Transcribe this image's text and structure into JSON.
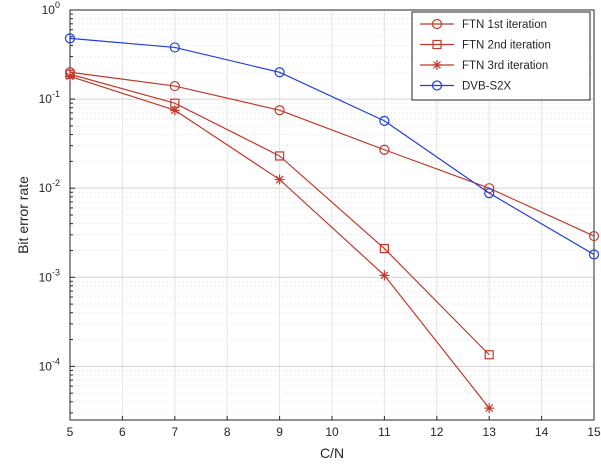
{
  "chart_data": {
    "type": "line",
    "xlabel": "C/N",
    "ylabel": "Bit error rate",
    "xlim": [
      5,
      15
    ],
    "ylim": [
      2.5e-05,
      1
    ],
    "yscale": "log",
    "grid": true,
    "legend_position": "top-right",
    "x_ticks": [
      5,
      6,
      7,
      8,
      9,
      10,
      11,
      12,
      13,
      14,
      15
    ],
    "series": [
      {
        "name": "FTN 1st iteration",
        "color": "#c0392b",
        "marker": "circle",
        "x": [
          5,
          7,
          9,
          11,
          13,
          15
        ],
        "y": [
          0.2,
          0.14,
          0.075,
          0.027,
          0.01,
          0.0029
        ]
      },
      {
        "name": "FTN 2nd iteration",
        "color": "#c0392b",
        "marker": "square",
        "x": [
          5,
          7,
          9,
          11,
          13
        ],
        "y": [
          0.19,
          0.09,
          0.023,
          0.0021,
          0.000135
        ]
      },
      {
        "name": "FTN 3rd iteration",
        "color": "#c0392b",
        "marker": "asterisk",
        "x": [
          5,
          7,
          9,
          11,
          13
        ],
        "y": [
          0.18,
          0.075,
          0.0125,
          0.00105,
          3.4e-05
        ]
      },
      {
        "name": "DVB-S2X",
        "color": "#1f3fd6",
        "marker": "circle",
        "x": [
          5,
          7,
          9,
          11,
          13,
          15
        ],
        "y": [
          0.48,
          0.38,
          0.2,
          0.057,
          0.0088,
          0.0018
        ]
      }
    ]
  }
}
